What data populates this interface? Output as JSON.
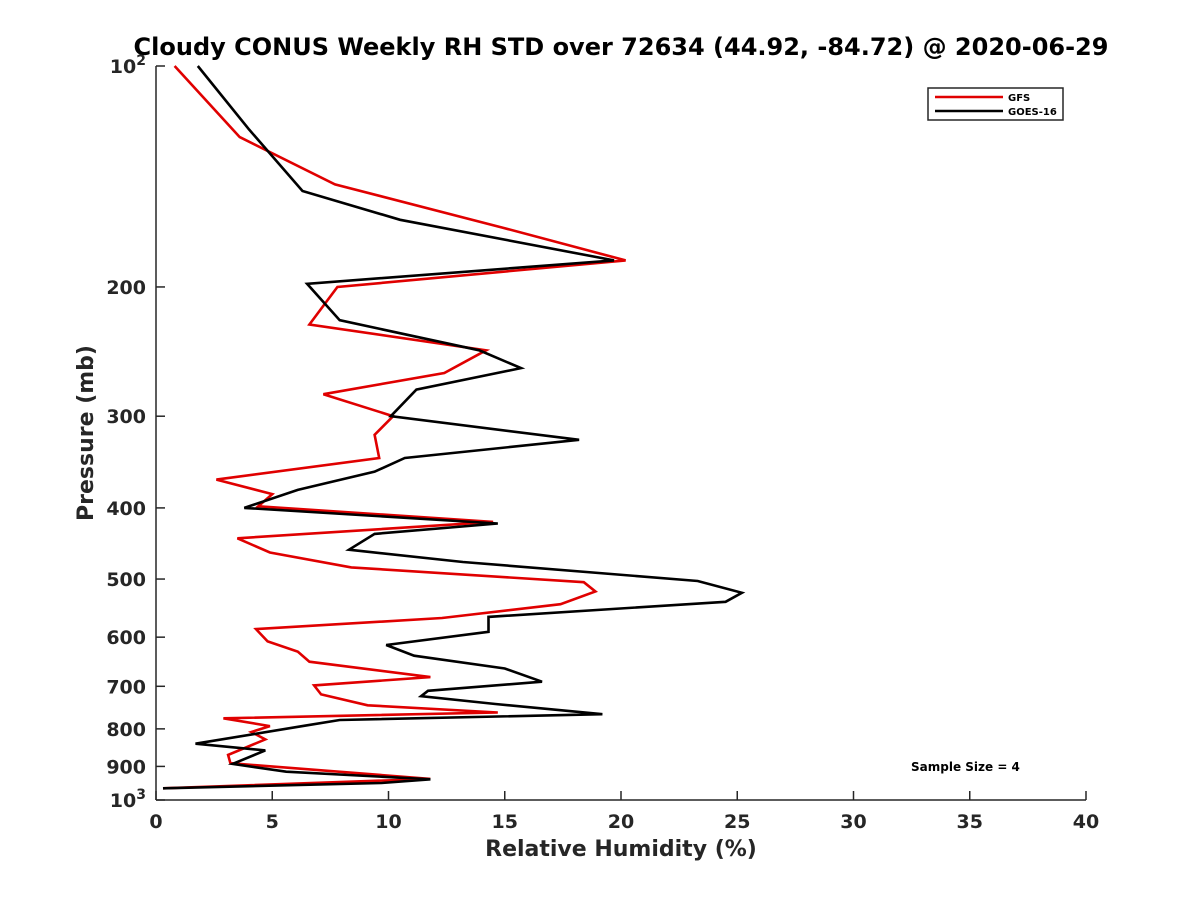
{
  "chart_data": {
    "type": "line",
    "title": "Cloudy CONUS Weekly RH STD over 72634 (44.92, -84.72) @ 2020-06-29",
    "xlabel": "Relative Humidity (%)",
    "ylabel": "Pressure (mb)",
    "xlim": [
      0,
      40
    ],
    "ylim": [
      100,
      1000
    ],
    "y_scale": "log",
    "y_reversed": true,
    "grid": false,
    "legend_position": "top-right",
    "x_ticks": [
      "0",
      "5",
      "10",
      "15",
      "20",
      "25",
      "30",
      "35",
      "40"
    ],
    "y_ticks": [
      {
        "value": 100,
        "base": "10",
        "exp": "2"
      },
      {
        "value": 200,
        "label": "200"
      },
      {
        "value": 300,
        "label": "300"
      },
      {
        "value": 400,
        "label": "400"
      },
      {
        "value": 500,
        "label": "500"
      },
      {
        "value": 600,
        "label": "600"
      },
      {
        "value": 700,
        "label": "700"
      },
      {
        "value": 800,
        "label": "800"
      },
      {
        "value": 900,
        "label": "900"
      },
      {
        "value": 1000,
        "base": "10",
        "exp": "3"
      }
    ],
    "series": [
      {
        "name": "GFS",
        "color": "#e00000",
        "points": [
          [
            0.8,
            100
          ],
          [
            3.6,
            125
          ],
          [
            7.7,
            145
          ],
          [
            14.9,
            166
          ],
          [
            20.2,
            184
          ],
          [
            7.8,
            200
          ],
          [
            6.6,
            225
          ],
          [
            14.2,
            244
          ],
          [
            12.4,
            262
          ],
          [
            7.2,
            280
          ],
          [
            10.2,
            300
          ],
          [
            9.4,
            318
          ],
          [
            9.6,
            342
          ],
          [
            2.6,
            366
          ],
          [
            5.0,
            383
          ],
          [
            4.4,
            398
          ],
          [
            14.5,
            418
          ],
          [
            3.5,
            440
          ],
          [
            4.9,
            460
          ],
          [
            8.4,
            482
          ],
          [
            18.4,
            505
          ],
          [
            18.9,
            520
          ],
          [
            17.4,
            541
          ],
          [
            12.3,
            565
          ],
          [
            4.3,
            585
          ],
          [
            4.8,
            608
          ],
          [
            6.1,
            628
          ],
          [
            6.6,
            648
          ],
          [
            11.8,
            680
          ],
          [
            6.8,
            698
          ],
          [
            7.1,
            718
          ],
          [
            9.1,
            743
          ],
          [
            14.7,
            760
          ],
          [
            2.9,
            774
          ],
          [
            4.9,
            793
          ],
          [
            4.1,
            808
          ],
          [
            4.7,
            827
          ],
          [
            3.1,
            868
          ],
          [
            3.2,
            891
          ],
          [
            11.8,
            936
          ],
          [
            0.3,
            964
          ]
        ]
      },
      {
        "name": "GOES-16",
        "color": "#000000",
        "points": [
          [
            1.8,
            100
          ],
          [
            4.0,
            122
          ],
          [
            6.3,
            148
          ],
          [
            10.5,
            162
          ],
          [
            19.7,
            184
          ],
          [
            6.5,
            198
          ],
          [
            7.9,
            222
          ],
          [
            13.9,
            244
          ],
          [
            15.7,
            258
          ],
          [
            11.2,
            276
          ],
          [
            10.1,
            300
          ],
          [
            18.2,
            323
          ],
          [
            10.7,
            342
          ],
          [
            9.4,
            357
          ],
          [
            6.1,
            378
          ],
          [
            3.8,
            400
          ],
          [
            14.7,
            420
          ],
          [
            9.4,
            434
          ],
          [
            8.3,
            456
          ],
          [
            13.2,
            474
          ],
          [
            23.3,
            503
          ],
          [
            25.2,
            522
          ],
          [
            24.5,
            537
          ],
          [
            14.3,
            563
          ],
          [
            14.3,
            590
          ],
          [
            9.9,
            615
          ],
          [
            11.1,
            636
          ],
          [
            15.0,
            662
          ],
          [
            16.6,
            690
          ],
          [
            11.7,
            710
          ],
          [
            11.4,
            722
          ],
          [
            14.6,
            740
          ],
          [
            19.2,
            764
          ],
          [
            7.9,
            778
          ],
          [
            6.4,
            792
          ],
          [
            1.7,
            838
          ],
          [
            4.7,
            856
          ],
          [
            3.3,
            893
          ],
          [
            5.6,
            915
          ],
          [
            11.8,
            937
          ],
          [
            9.7,
            948
          ],
          [
            0.3,
            964
          ]
        ]
      }
    ],
    "annotation": "Sample Size = 4"
  }
}
